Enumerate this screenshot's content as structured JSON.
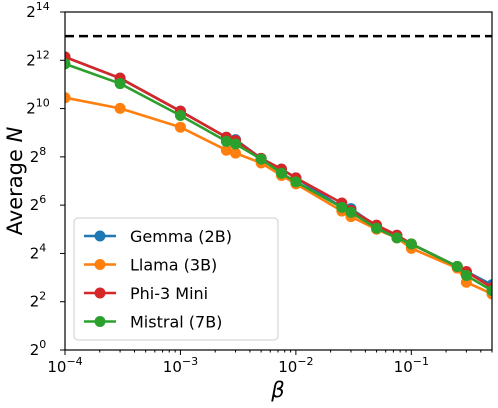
{
  "chart_data": {
    "type": "line",
    "title": "",
    "xlabel": "β",
    "ylabel_prefix": "Average ",
    "ylabel_var": "N",
    "x_scale": "log10",
    "y_scale": "log2",
    "xlim": [
      0.0001,
      0.5
    ],
    "ylim": [
      1,
      16384
    ],
    "grid": false,
    "legend_position": "lower-left",
    "x_ticks": [
      {
        "value": 0.0001,
        "base": "10",
        "exp": "−4"
      },
      {
        "value": 0.001,
        "base": "10",
        "exp": "−3"
      },
      {
        "value": 0.01,
        "base": "10",
        "exp": "−2"
      },
      {
        "value": 0.1,
        "base": "10",
        "exp": "−1"
      }
    ],
    "y_ticks": [
      {
        "value": 1,
        "base": "2",
        "exp": "0"
      },
      {
        "value": 4,
        "base": "2",
        "exp": "2"
      },
      {
        "value": 16,
        "base": "2",
        "exp": "4"
      },
      {
        "value": 64,
        "base": "2",
        "exp": "6"
      },
      {
        "value": 256,
        "base": "2",
        "exp": "8"
      },
      {
        "value": 1024,
        "base": "2",
        "exp": "10"
      },
      {
        "value": 4096,
        "base": "2",
        "exp": "12"
      },
      {
        "value": 16384,
        "base": "2",
        "exp": "14"
      }
    ],
    "reference_line": {
      "y": 8192,
      "style": "dashed",
      "color": "#000000"
    },
    "x": [
      0.0001,
      0.0003,
      0.001,
      0.0025,
      0.003,
      0.005,
      0.0075,
      0.01,
      0.025,
      0.03,
      0.05,
      0.075,
      0.1,
      0.25,
      0.3,
      0.5
    ],
    "series": [
      {
        "name": "Gemma (2B)",
        "color": "#1f77b4",
        "values": [
          4500,
          2450,
          950,
          450,
          420,
          245,
          180,
          140,
          60,
          58,
          35,
          27,
          21,
          11,
          9.5,
          6.5
        ]
      },
      {
        "name": "Llama (3B)",
        "color": "#ff7f0e",
        "values": [
          1400,
          1030,
          600,
          310,
          285,
          215,
          150,
          118,
          54,
          46,
          32,
          25,
          18.5,
          10.5,
          7,
          5
        ]
      },
      {
        "name": "Phi-3 Mini",
        "color": "#d62728",
        "values": [
          4500,
          2450,
          950,
          450,
          410,
          245,
          180,
          140,
          68,
          55,
          36,
          27,
          21,
          11,
          9.5,
          6
        ]
      },
      {
        "name": "Mistral (7B)",
        "color": "#2ca02c",
        "values": [
          3700,
          2100,
          840,
          400,
          370,
          240,
          160,
          125,
          60,
          52,
          33,
          25,
          21,
          11,
          8.5,
          5.5
        ]
      }
    ]
  }
}
